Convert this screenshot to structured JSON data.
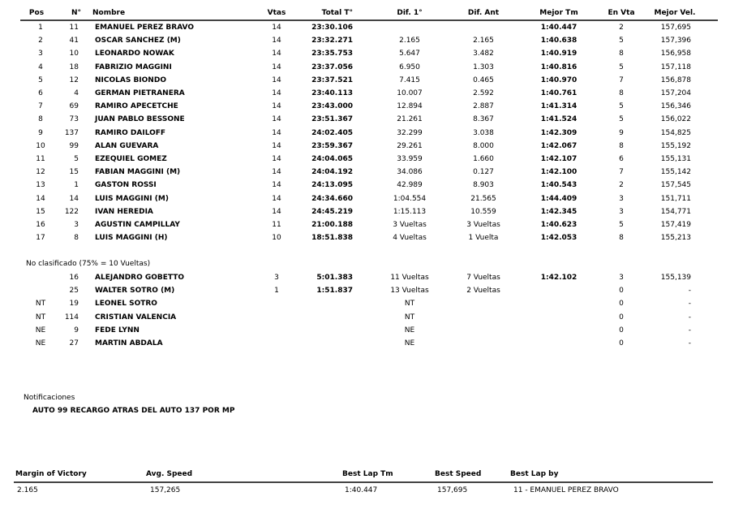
{
  "header": {
    "pos": "Pos",
    "num": "N°",
    "name": "Nombre",
    "laps": "Vtas",
    "total": "Total T°",
    "dif1": "Dif. 1°",
    "difant": "Dif. Ant",
    "best": "Mejor Tm",
    "onlap": "En Vta",
    "speed": "Mejor Vel."
  },
  "classified": [
    {
      "pos": "1",
      "num": "11",
      "name": "EMANUEL PEREZ BRAVO",
      "laps": "14",
      "total": "23:30.106",
      "dif1": "",
      "difant": "",
      "best": "1:40.447",
      "onlap": "2",
      "speed": "157,695"
    },
    {
      "pos": "2",
      "num": "41",
      "name": "OSCAR SANCHEZ (M)",
      "laps": "14",
      "total": "23:32.271",
      "dif1": "2.165",
      "difant": "2.165",
      "best": "1:40.638",
      "onlap": "5",
      "speed": "157,396"
    },
    {
      "pos": "3",
      "num": "10",
      "name": "LEONARDO NOWAK",
      "laps": "14",
      "total": "23:35.753",
      "dif1": "5.647",
      "difant": "3.482",
      "best": "1:40.919",
      "onlap": "8",
      "speed": "156,958"
    },
    {
      "pos": "4",
      "num": "18",
      "name": "FABRIZIO MAGGINI",
      "laps": "14",
      "total": "23:37.056",
      "dif1": "6.950",
      "difant": "1.303",
      "best": "1:40.816",
      "onlap": "5",
      "speed": "157,118"
    },
    {
      "pos": "5",
      "num": "12",
      "name": "NICOLAS BIONDO",
      "laps": "14",
      "total": "23:37.521",
      "dif1": "7.415",
      "difant": "0.465",
      "best": "1:40.970",
      "onlap": "7",
      "speed": "156,878"
    },
    {
      "pos": "6",
      "num": "4",
      "name": "GERMAN PIETRANERA",
      "laps": "14",
      "total": "23:40.113",
      "dif1": "10.007",
      "difant": "2.592",
      "best": "1:40.761",
      "onlap": "8",
      "speed": "157,204"
    },
    {
      "pos": "7",
      "num": "69",
      "name": "RAMIRO APECETCHE",
      "laps": "14",
      "total": "23:43.000",
      "dif1": "12.894",
      "difant": "2.887",
      "best": "1:41.314",
      "onlap": "5",
      "speed": "156,346"
    },
    {
      "pos": "8",
      "num": "73",
      "name": "JUAN PABLO BESSONE",
      "laps": "14",
      "total": "23:51.367",
      "dif1": "21.261",
      "difant": "8.367",
      "best": "1:41.524",
      "onlap": "5",
      "speed": "156,022"
    },
    {
      "pos": "9",
      "num": "137",
      "name": "RAMIRO DAILOFF",
      "laps": "14",
      "total": "24:02.405",
      "dif1": "32.299",
      "difant": "3.038",
      "best": "1:42.309",
      "onlap": "9",
      "speed": "154,825"
    },
    {
      "pos": "10",
      "num": "99",
      "name": "ALAN GUEVARA",
      "laps": "14",
      "total": "23:59.367",
      "dif1": "29.261",
      "difant": "8.000",
      "best": "1:42.067",
      "onlap": "8",
      "speed": "155,192"
    },
    {
      "pos": "11",
      "num": "5",
      "name": "EZEQUIEL GOMEZ",
      "laps": "14",
      "total": "24:04.065",
      "dif1": "33.959",
      "difant": "1.660",
      "best": "1:42.107",
      "onlap": "6",
      "speed": "155,131"
    },
    {
      "pos": "12",
      "num": "15",
      "name": "FABIAN MAGGINI (M)",
      "laps": "14",
      "total": "24:04.192",
      "dif1": "34.086",
      "difant": "0.127",
      "best": "1:42.100",
      "onlap": "7",
      "speed": "155,142"
    },
    {
      "pos": "13",
      "num": "1",
      "name": "GASTON ROSSI",
      "laps": "14",
      "total": "24:13.095",
      "dif1": "42.989",
      "difant": "8.903",
      "best": "1:40.543",
      "onlap": "2",
      "speed": "157,545"
    },
    {
      "pos": "14",
      "num": "14",
      "name": "LUIS MAGGINI (M)",
      "laps": "14",
      "total": "24:34.660",
      "dif1": "1:04.554",
      "difant": "21.565",
      "best": "1:44.409",
      "onlap": "3",
      "speed": "151,711"
    },
    {
      "pos": "15",
      "num": "122",
      "name": "IVAN HEREDIA",
      "laps": "14",
      "total": "24:45.219",
      "dif1": "1:15.113",
      "difant": "10.559",
      "best": "1:42.345",
      "onlap": "3",
      "speed": "154,771"
    },
    {
      "pos": "16",
      "num": "3",
      "name": "AGUSTIN CAMPILLAY",
      "laps": "11",
      "total": "21:00.188",
      "dif1": "3 Vueltas",
      "difant": "3 Vueltas",
      "best": "1:40.623",
      "onlap": "5",
      "speed": "157,419"
    },
    {
      "pos": "17",
      "num": "8",
      "name": "LUIS MAGGINI (H)",
      "laps": "10",
      "total": "18:51.838",
      "dif1": "4 Vueltas",
      "difant": "1 Vuelta",
      "best": "1:42.053",
      "onlap": "8",
      "speed": "155,213"
    }
  ],
  "not_classified_label": "No clasificado (75% = 10 Vueltas)",
  "not_classified": [
    {
      "pos": "",
      "num": "16",
      "name": "ALEJANDRO GOBETTO",
      "laps": "3",
      "total": "5:01.383",
      "dif1": "11 Vueltas",
      "difant": "7 Vueltas",
      "best": "1:42.102",
      "onlap": "3",
      "speed": "155,139"
    },
    {
      "pos": "",
      "num": "25",
      "name": "WALTER SOTRO  (M)",
      "laps": "1",
      "total": "1:51.837",
      "dif1": "13 Vueltas",
      "difant": "2 Vueltas",
      "best": "",
      "onlap": "0",
      "speed": "-"
    },
    {
      "pos": "NT",
      "num": "19",
      "name": "LEONEL SOTRO",
      "laps": "",
      "total": "",
      "dif1": "NT",
      "difant": "",
      "best": "",
      "onlap": "0",
      "speed": "-"
    },
    {
      "pos": "NT",
      "num": "114",
      "name": "CRISTIAN VALENCIA",
      "laps": "",
      "total": "",
      "dif1": "NT",
      "difant": "",
      "best": "",
      "onlap": "0",
      "speed": "-"
    },
    {
      "pos": "NE",
      "num": "9",
      "name": "FEDE LYNN",
      "laps": "",
      "total": "",
      "dif1": "NE",
      "difant": "",
      "best": "",
      "onlap": "0",
      "speed": "-"
    },
    {
      "pos": "NE",
      "num": "27",
      "name": "MARTIN ABDALA",
      "laps": "",
      "total": "",
      "dif1": "NE",
      "difant": "",
      "best": "",
      "onlap": "0",
      "speed": "-"
    }
  ],
  "notifications": {
    "label": "Notificaciones",
    "message": "AUTO 99 RECARGO ATRAS DEL AUTO 137 POR MP"
  },
  "summary": {
    "headers": {
      "margin": "Margin of Victory",
      "avg": "Avg. Speed",
      "best_lap": "Best Lap Tm",
      "best_speed": "Best Speed",
      "best_by": "Best Lap by"
    },
    "values": {
      "margin": "2.165",
      "avg": "157,265",
      "best_lap": "1:40.447",
      "best_speed": "157,695",
      "best_by": "11 - EMANUEL PEREZ BRAVO"
    }
  }
}
